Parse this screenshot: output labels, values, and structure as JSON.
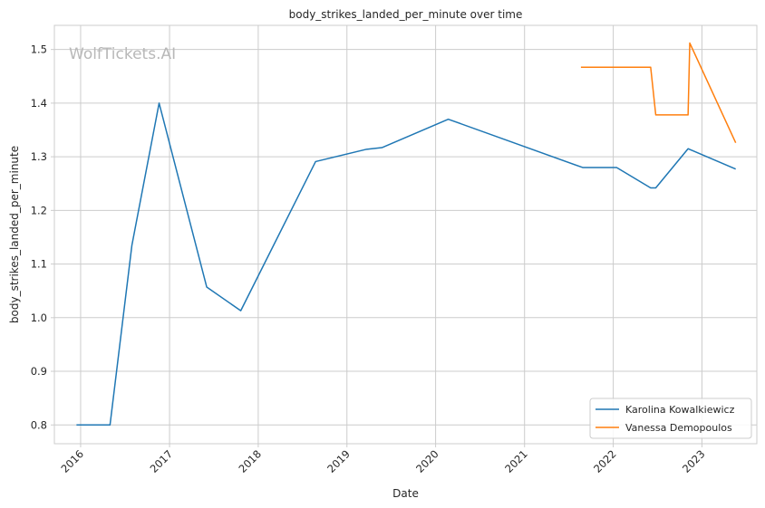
{
  "chart_data": {
    "type": "line",
    "title": "body_strikes_landed_per_minute over time",
    "xlabel": "Date",
    "ylabel": "body_strikes_landed_per_minute",
    "watermark": "WolfTickets.AI",
    "x_ticks": [
      "2016",
      "2017",
      "2018",
      "2019",
      "2020",
      "2021",
      "2022",
      "2023"
    ],
    "y_ticks": [
      "0.8",
      "0.9",
      "1.0",
      "1.1",
      "1.2",
      "1.3",
      "1.4",
      "1.5"
    ],
    "xlim": [
      "2015-09-15",
      "2023-08-15"
    ],
    "ylim": [
      0.765,
      1.545
    ],
    "grid": true,
    "legend_position": "lower-right",
    "series": [
      {
        "name": "Karolina Kowalkiewicz",
        "color": "#1f77b4",
        "points": [
          [
            "2015-12-15",
            0.8
          ],
          [
            "2016-05-01",
            0.8
          ],
          [
            "2016-07-30",
            1.135
          ],
          [
            "2016-11-19",
            1.4
          ],
          [
            "2017-06-03",
            1.057
          ],
          [
            "2017-10-21",
            1.013
          ],
          [
            "2018-08-25",
            1.291
          ],
          [
            "2019-03-23",
            1.314
          ],
          [
            "2019-05-25",
            1.317
          ],
          [
            "2020-02-22",
            1.37
          ],
          [
            "2021-08-28",
            1.28
          ],
          [
            "2022-01-15",
            1.28
          ],
          [
            "2022-06-04",
            1.242
          ],
          [
            "2022-06-25",
            1.242
          ],
          [
            "2022-11-05",
            1.315
          ],
          [
            "2023-05-20",
            1.277
          ]
        ]
      },
      {
        "name": "Vanessa Demopoulos",
        "color": "#ff7f0e",
        "points": [
          [
            "2021-08-21",
            1.467
          ],
          [
            "2022-06-04",
            1.467
          ],
          [
            "2022-06-25",
            1.378
          ],
          [
            "2022-11-05",
            1.378
          ],
          [
            "2022-11-12",
            1.512
          ],
          [
            "2023-05-20",
            1.326
          ]
        ]
      }
    ]
  }
}
